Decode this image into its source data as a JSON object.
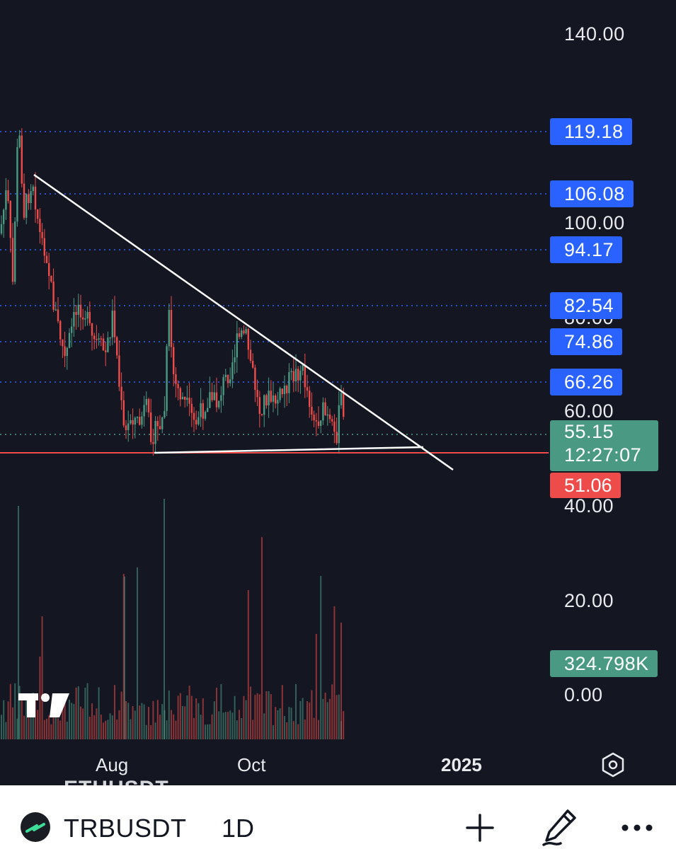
{
  "chart": {
    "symbol": "TRBUSDT",
    "ghost_symbol": "ETHUSDT",
    "interval": "1D",
    "price_axis": [
      "140.00",
      "100.00",
      "80.00",
      "60.00",
      "40.00",
      "20.00",
      "0.00"
    ],
    "level_lines": [
      "119.18",
      "106.08",
      "94.17",
      "82.54",
      "74.86",
      "66.26"
    ],
    "current_price": "55.15",
    "countdown": "12:27:07",
    "low_price": "51.06",
    "volume": "324.798K",
    "time_axis": [
      "Aug",
      "Oct",
      "2025"
    ],
    "colors": {
      "background": "#141722",
      "up": "#4a9a83",
      "down": "#ee4b4b",
      "level": "#2962ff",
      "trendline": "#ffffff"
    },
    "icons": [
      "tradingview-logo-icon",
      "settings-hexagon-icon",
      "symbol-logo-icon",
      "plus-icon",
      "pencil-icon",
      "more-icon"
    ]
  },
  "chart_data": {
    "type": "candlestick",
    "x": [],
    "y": []
  }
}
